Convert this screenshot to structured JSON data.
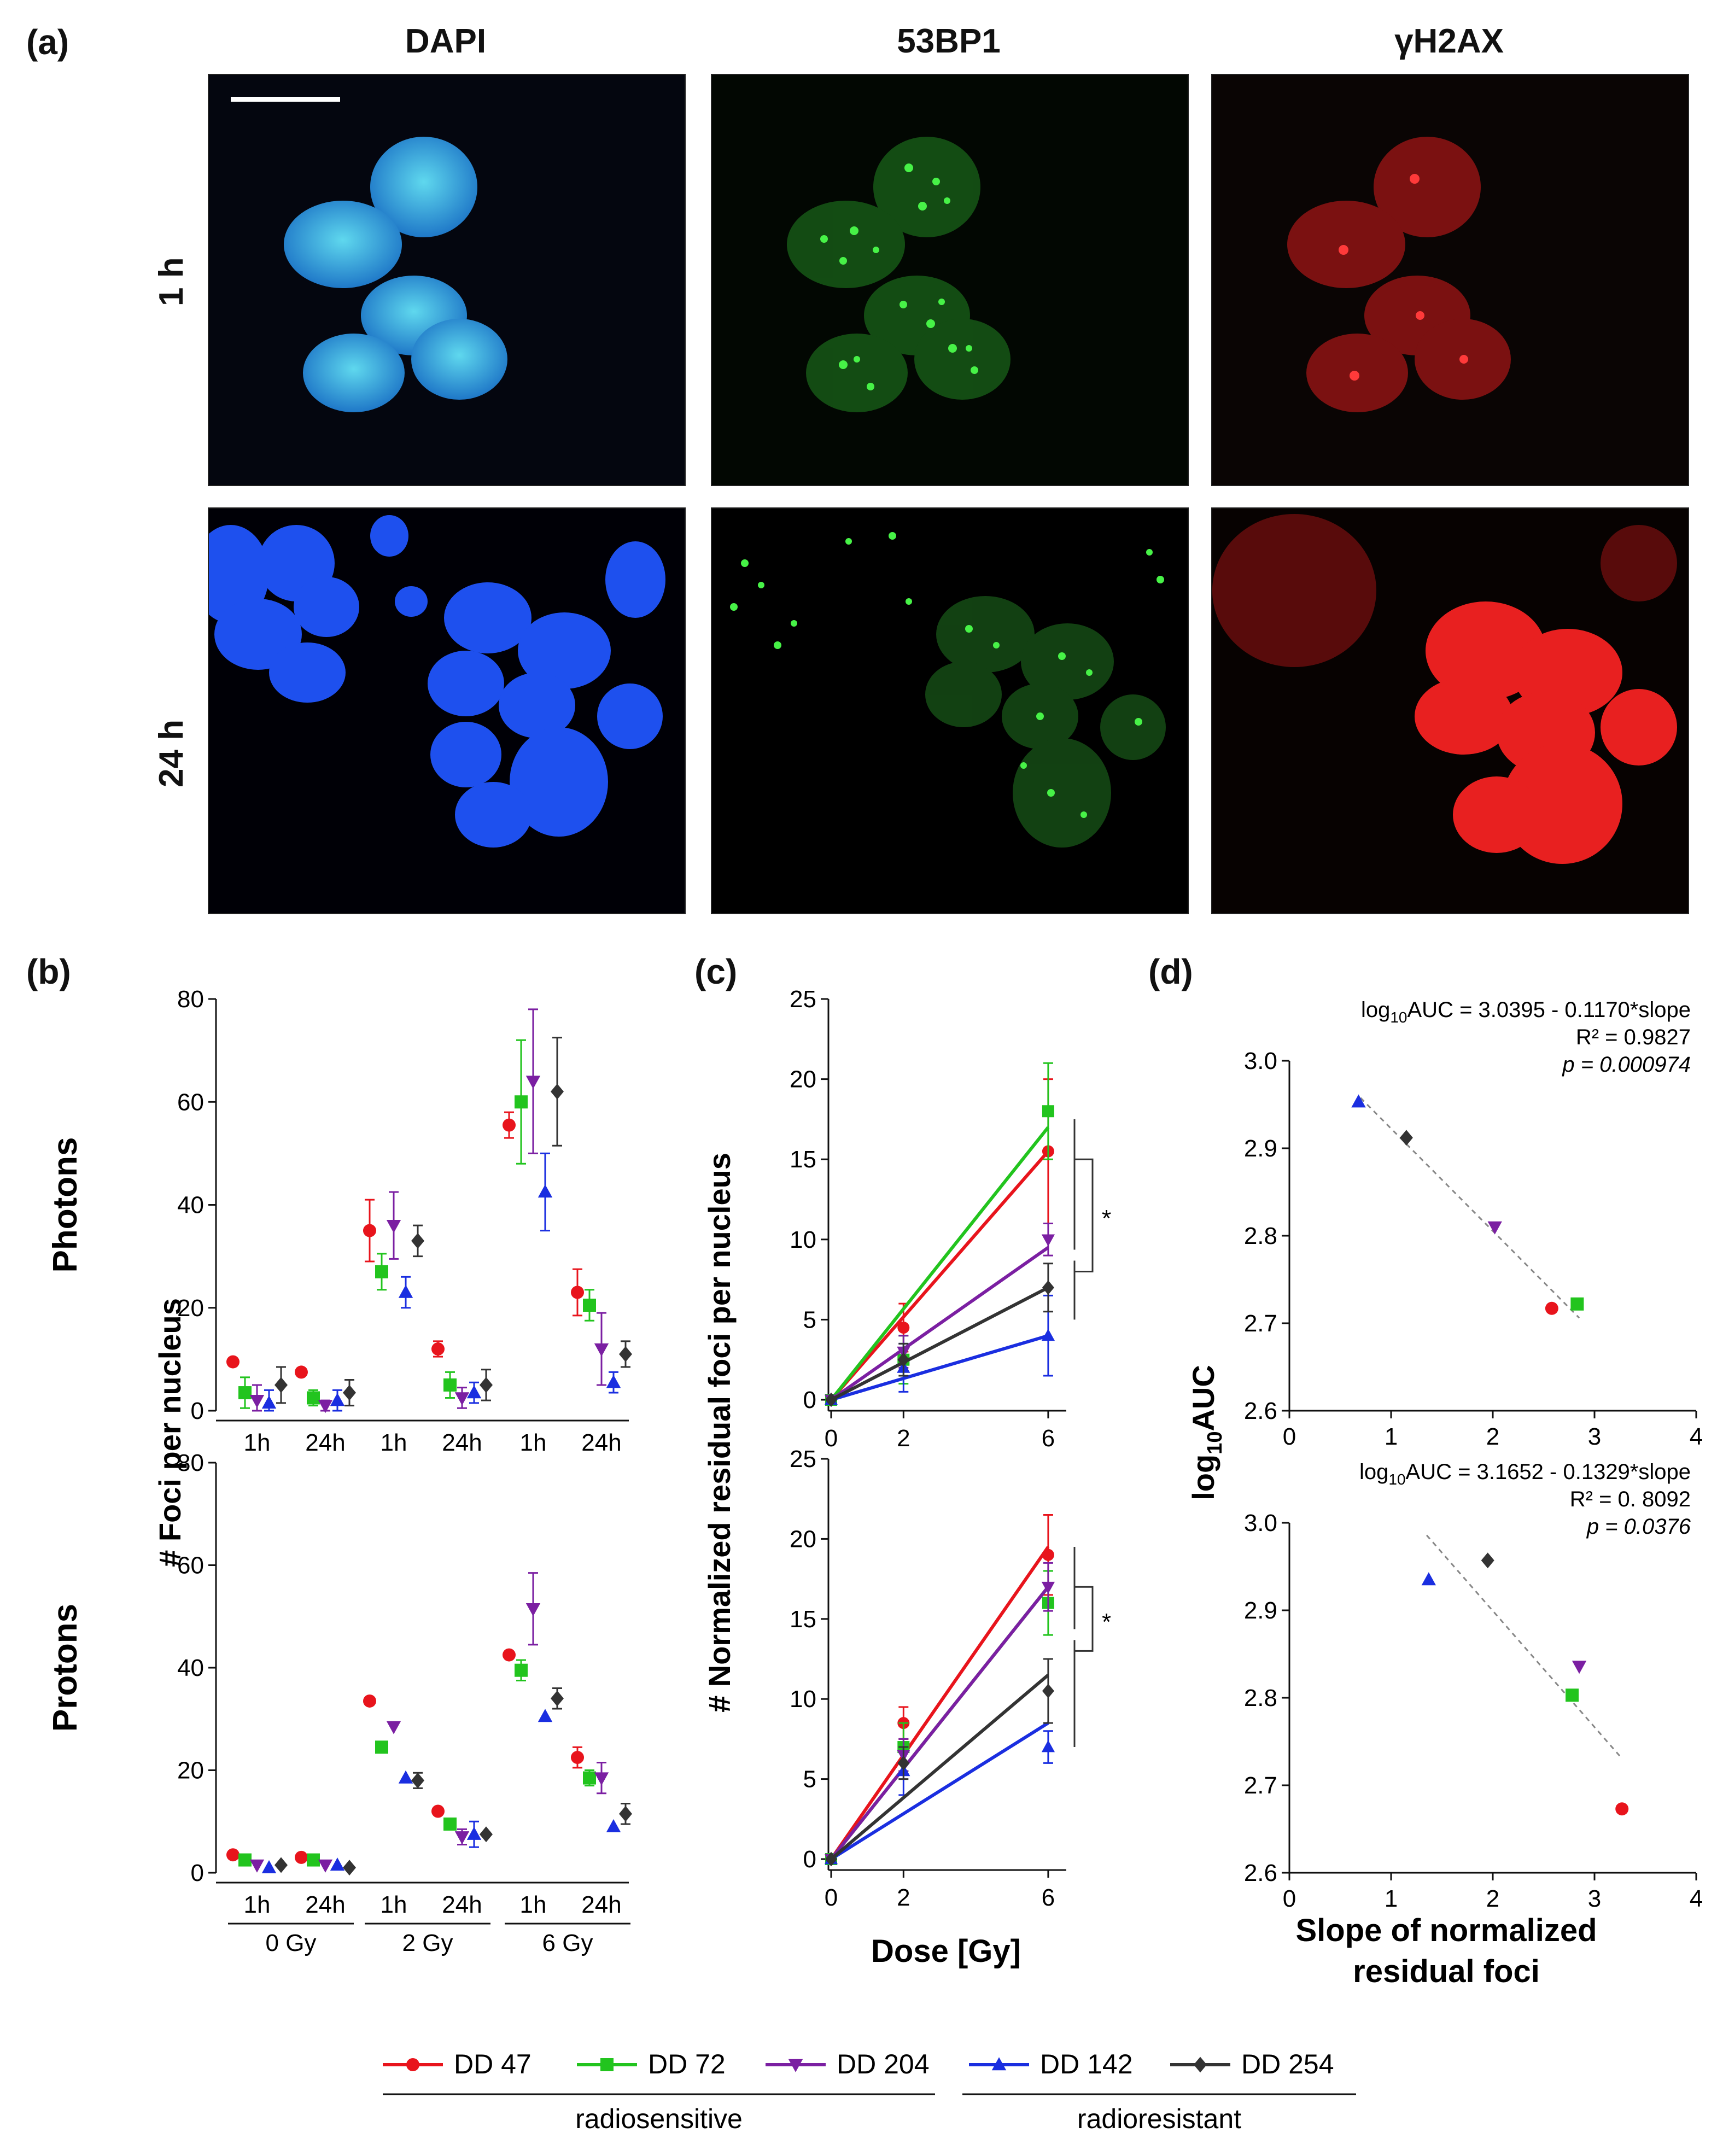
{
  "panels": {
    "a": "(a)",
    "b": "(b)",
    "c": "(c)",
    "d": "(d)"
  },
  "micrographs": {
    "columns": [
      "DAPI",
      "53BP1",
      "γH2AX"
    ],
    "rows": [
      "1 h",
      "24 h"
    ],
    "colors": {
      "DAPI": "#1e5cf0",
      "53BP1": "#2ee82e",
      "gH2AX": "#e02020"
    }
  },
  "legend": {
    "items": [
      {
        "name": "DD 47",
        "color": "#e8141c",
        "marker": "circle"
      },
      {
        "name": "DD 72",
        "color": "#22c41e",
        "marker": "square"
      },
      {
        "name": "DD 204",
        "color": "#7b1fa2",
        "marker": "triangle-down"
      },
      {
        "name": "DD 142",
        "color": "#1a2ee0",
        "marker": "triangle-up"
      },
      {
        "name": "DD 254",
        "color": "#333333",
        "marker": "diamond"
      }
    ],
    "groups": [
      "radiosensitive",
      "radioresistant"
    ]
  },
  "chart_data": [
    {
      "id": "b",
      "type": "scatter",
      "ylabel": "# Foci per nucleus",
      "ylim": [
        0,
        80
      ],
      "yticks": [
        0,
        20,
        40,
        60,
        80
      ],
      "time_labels": [
        "1h",
        "24h"
      ],
      "dose_labels": [
        "0 Gy",
        "2 Gy",
        "6 Gy"
      ],
      "subplots": [
        {
          "row_label": "Photons",
          "series": [
            {
              "name": "DD 47",
              "values": [
                9.5,
                7.5,
                35,
                12,
                55.5,
                23
              ],
              "errors": [
                0.5,
                0.5,
                6,
                1.5,
                2.5,
                4.5
              ]
            },
            {
              "name": "DD 72",
              "values": [
                3.5,
                2.5,
                27,
                5,
                60,
                20.5
              ],
              "errors": [
                3,
                1.5,
                3.5,
                2.5,
                12,
                3
              ]
            },
            {
              "name": "DD 204",
              "values": [
                2,
                1,
                36,
                2.5,
                64,
                12
              ],
              "errors": [
                3,
                1,
                6.5,
                2,
                14,
                7
              ]
            },
            {
              "name": "DD 142",
              "values": [
                1.5,
                2,
                23,
                3.5,
                42.5,
                5.5
              ],
              "errors": [
                2.5,
                2,
                3,
                2,
                7.5,
                2
              ]
            },
            {
              "name": "DD 254",
              "values": [
                5,
                3.5,
                33,
                5,
                62,
                11
              ],
              "errors": [
                3.5,
                2.5,
                3,
                3,
                10.5,
                2.5
              ]
            }
          ]
        },
        {
          "row_label": "Protons",
          "series": [
            {
              "name": "DD 47",
              "values": [
                3.5,
                3,
                33.5,
                12,
                42.5,
                22.5
              ],
              "errors": [
                0.5,
                0.5,
                0.5,
                0.5,
                0.5,
                2
              ]
            },
            {
              "name": "DD 72",
              "values": [
                2.5,
                2.5,
                24.5,
                9.5,
                39.5,
                18.5
              ],
              "errors": [
                0.5,
                0.5,
                0.5,
                0.5,
                2,
                1.5
              ]
            },
            {
              "name": "DD 204",
              "values": [
                1.5,
                1.5,
                28.5,
                7,
                51.5,
                18.5
              ],
              "errors": [
                0.5,
                0.5,
                0.5,
                1.5,
                7,
                3
              ]
            },
            {
              "name": "DD 142",
              "values": [
                1,
                1.5,
                18.5,
                7.5,
                30.5,
                9
              ],
              "errors": [
                0.5,
                0.5,
                0.5,
                2.5,
                0.5,
                0.5
              ]
            },
            {
              "name": "DD 254",
              "values": [
                1.5,
                1,
                18,
                7.5,
                34,
                11.5
              ],
              "errors": [
                0.5,
                0.5,
                1.5,
                0.5,
                2,
                2
              ]
            }
          ]
        }
      ]
    },
    {
      "id": "c",
      "type": "line",
      "ylabel": "# Normalized residual foci per nucleus",
      "xlabel": "Dose [Gy]",
      "x": [
        0,
        2,
        6
      ],
      "xlim": [
        0,
        6.5
      ],
      "xticks": [
        0,
        2,
        6
      ],
      "ylim": [
        0,
        25
      ],
      "yticks": [
        0,
        5,
        10,
        15,
        20,
        25
      ],
      "significance": "*",
      "subplots": [
        {
          "series": [
            {
              "name": "DD 47",
              "values": [
                0,
                4.5,
                15.5
              ],
              "fit_end": 15.5,
              "errors": [
                0,
                1.5,
                4.5
              ]
            },
            {
              "name": "DD 72",
              "values": [
                0,
                2.5,
                18
              ],
              "fit_end": 17,
              "errors": [
                0,
                1.5,
                3
              ]
            },
            {
              "name": "DD 204",
              "values": [
                0,
                3,
                10
              ],
              "fit_end": 9.5,
              "errors": [
                0,
                1,
                1
              ]
            },
            {
              "name": "DD 142",
              "values": [
                0,
                2,
                4
              ],
              "fit_end": 4,
              "errors": [
                0,
                1.5,
                2.5
              ]
            },
            {
              "name": "DD 254",
              "values": [
                0,
                2.5,
                7
              ],
              "fit_end": 7,
              "errors": [
                0,
                1,
                1.5
              ]
            }
          ]
        },
        {
          "series": [
            {
              "name": "DD 47",
              "values": [
                0,
                8.5,
                19
              ],
              "fit_end": 19.5,
              "errors": [
                0,
                1,
                2.5
              ]
            },
            {
              "name": "DD 72",
              "values": [
                0,
                7,
                16
              ],
              "fit_end": 17,
              "errors": [
                0,
                1.5,
                2
              ]
            },
            {
              "name": "DD 204",
              "values": [
                0,
                6.5,
                17
              ],
              "fit_end": 17,
              "errors": [
                0,
                1,
                1.5
              ]
            },
            {
              "name": "DD 142",
              "values": [
                0,
                5.5,
                7
              ],
              "fit_end": 8.5,
              "errors": [
                0,
                1.5,
                1
              ]
            },
            {
              "name": "DD 254",
              "values": [
                0,
                6,
                10.5
              ],
              "fit_end": 11.5,
              "errors": [
                0,
                1,
                2
              ]
            }
          ]
        }
      ]
    },
    {
      "id": "d",
      "type": "scatter",
      "ylabel": "log10AUC",
      "xlabel": [
        "Slope of normalized",
        "residual foci"
      ],
      "xlim": [
        0,
        4
      ],
      "xticks": [
        0,
        1,
        2,
        3,
        4
      ],
      "ylim": [
        2.6,
        3.0
      ],
      "yticks": [
        2.6,
        2.7,
        2.8,
        2.9,
        3.0
      ],
      "subplots": [
        {
          "equation": "log10AUC = 3.0395 - 0.1170*slope",
          "r2": "R² = 0.9827",
          "p": "p = 0.000974",
          "intercept": 3.0395,
          "slope": -0.117,
          "fit_x": [
            0.7,
            2.85
          ],
          "points": [
            {
              "name": "DD 142",
              "x": 0.68,
              "y": 2.953
            },
            {
              "name": "DD 254",
              "x": 1.15,
              "y": 2.912
            },
            {
              "name": "DD 204",
              "x": 2.02,
              "y": 2.81
            },
            {
              "name": "DD 47",
              "x": 2.58,
              "y": 2.717
            },
            {
              "name": "DD 72",
              "x": 2.83,
              "y": 2.722
            }
          ]
        },
        {
          "equation": "log10AUC = 3.1652 - 0.1329*slope",
          "r2": "R² = 0. 8092",
          "p": "p = 0.0376",
          "intercept": 3.1652,
          "slope": -0.1329,
          "fit_x": [
            1.35,
            3.25
          ],
          "points": [
            {
              "name": "DD 142",
              "x": 1.37,
              "y": 2.935
            },
            {
              "name": "DD 254",
              "x": 1.95,
              "y": 2.957
            },
            {
              "name": "DD 204",
              "x": 2.85,
              "y": 2.836
            },
            {
              "name": "DD 72",
              "x": 2.78,
              "y": 2.803
            },
            {
              "name": "DD 47",
              "x": 3.27,
              "y": 2.673
            }
          ]
        }
      ]
    }
  ]
}
